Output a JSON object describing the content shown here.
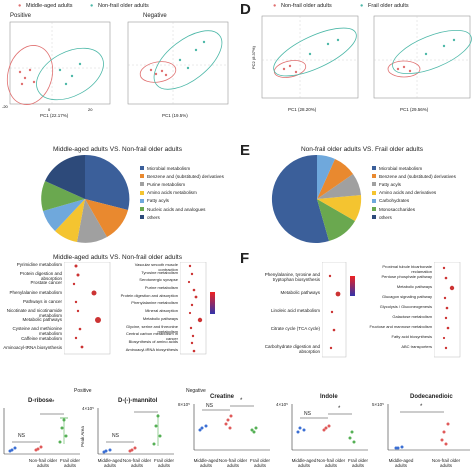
{
  "panels": {
    "letters": [
      "D",
      "E",
      "F"
    ],
    "pca_left": {
      "legend": [
        "Middle-aged adults",
        "Non-frail older adults"
      ],
      "colors": [
        "#e07070",
        "#4db8a8"
      ],
      "subplots": [
        {
          "title": "Positive",
          "xlabel": "PC1 (22.17%)",
          "ylabel": "PC2 (12.07%)"
        },
        {
          "title": "Negative",
          "xlabel": "PC1 (19.5%)",
          "ylabel": "PC2 (10.85%)"
        }
      ]
    },
    "pca_right": {
      "legend": [
        "Non-frail older adults",
        "Frail older adults"
      ],
      "colors": [
        "#e07070",
        "#4db8a8"
      ],
      "subplots": [
        {
          "title": "",
          "xlabel": "PC1 (28.20%)",
          "ylabel": "PC2 (8.37%)"
        },
        {
          "title": "",
          "xlabel": "PC1 (29.56%)",
          "ylabel": "PC2 (11.03%)"
        }
      ]
    },
    "pie_left": {
      "title": "Middle-aged adults VS. Non-frail older adults",
      "legend": [
        "Microbial metabolism",
        "Benzene and (substituted) derivatives",
        "Purine metabolism",
        "Amino acids metabolism",
        "Fatty acyls",
        "Nucleic acids and analogues",
        "others"
      ],
      "colors": [
        "#3b5f9a",
        "#e9892f",
        "#a0a0a0",
        "#f4c430",
        "#6fa8dc",
        "#6aa84f",
        "#2d4a7a"
      ]
    },
    "pie_right": {
      "title": "Non-frail older adults VS. Frail older adults",
      "legend": [
        "Microbial metabolism",
        "Benzene and (substituted) derivatives",
        "Fatty acyls",
        "Amino acids and derivatives",
        "Carbohydrates",
        "Monosaccharides",
        "others"
      ],
      "colors": [
        "#3b5f9a",
        "#e9892f",
        "#a0a0a0",
        "#f4c430",
        "#6fa8dc",
        "#6aa84f",
        "#2d4a7a"
      ]
    },
    "enrich_left": {
      "title": "Middle-aged adults VS. Non-frail older adults",
      "labels_pos": [
        "Pyrimidine metabolism",
        "Protein digestion and absorption",
        "Prostate cancer",
        "Phenylalanine metabolism",
        "Pathways in cancer",
        "Nicotinate and nicotinamide metabolism",
        "Metabolic pathways",
        "Cysteine and methionine metabolism",
        "Caffeine metabolism",
        "Aminoacyl-tRNA biosynthesis"
      ],
      "labels_neg": [
        "Vascular smooth muscle contraction",
        "Tyrosine metabolism",
        "Serotonergic synapse",
        "Purine metabolism",
        "Protein digestion and absorption",
        "Phenylalanine metabolism",
        "Mineral absorption",
        "Metabolic pathways",
        "Glycine, serine and threonine metabolism",
        "Central carbon metabolism in cancer",
        "Biosynthesis of amino acids",
        "Aminoacyl-tRNA biosynthesis"
      ],
      "sub_titles": [
        "Positive",
        "Negative"
      ]
    },
    "enrich_right": {
      "labels_pos": [
        "Phenylalanine, tyrosine and tryptophan biosynthesis",
        "Metabolic pathways",
        "Linoleic acid metabolism",
        "Citrate cycle (TCA cycle)",
        "Carbohydrate digestion and absorption"
      ],
      "labels_neg": [
        "Proximal tubule bicarbonate reclamation",
        "Pentose phosphate pathway",
        "Metabolic pathways",
        "Glucagon signaling pathway",
        "Glycolysis / Gluconeogenesis",
        "Galactose metabolism",
        "Fructose and mannose metabolism",
        "Fatty acid biosynthesis",
        "ABC transporters"
      ]
    },
    "bar_plots": {
      "ylabel": "Peak Area",
      "groups": [
        "Middle-aged adults",
        "Non-frail older adults",
        "Frail older adults"
      ],
      "group_colors": [
        "#3b6fd4",
        "#e05a5a",
        "#55b055"
      ],
      "plots": [
        {
          "title": "D-ribose",
          "sig": [
            "NS",
            "*"
          ]
        },
        {
          "title": "D-(-)-mannitol",
          "sig": [
            "NS",
            "*"
          ],
          "ytick": "4×10⁵"
        },
        {
          "title": "Creatine",
          "sig": [
            "NS",
            "*"
          ],
          "ytick": "8×10⁵"
        },
        {
          "title": "Indole",
          "sig": [
            "NS",
            "*"
          ],
          "ytick": "4×10⁵"
        },
        {
          "title": "Dodecanedioic",
          "sig": [
            "*"
          ],
          "ytick": "5×10⁵"
        }
      ]
    }
  }
}
